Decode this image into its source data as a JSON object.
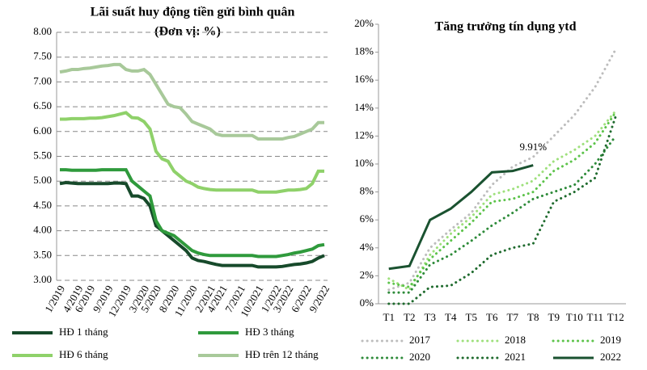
{
  "chart_data": [
    {
      "type": "line",
      "title": "Lãi suất huy động tiền gửi bình quân",
      "subtitle": "(Đơn vị: %)",
      "categories": [
        "1/2019",
        null,
        null,
        "4/2019",
        null,
        "6/2019",
        null,
        null,
        "9/2019",
        null,
        null,
        "12/2019",
        null,
        null,
        "3/2020",
        null,
        "5/2020",
        null,
        null,
        "8/2020",
        null,
        null,
        "11/2020",
        null,
        null,
        "2/2021",
        null,
        "4/2021",
        null,
        null,
        "7/2021",
        null,
        null,
        "10/2021",
        null,
        null,
        "1/2022",
        null,
        "3/2022",
        null,
        null,
        "6/2022",
        null,
        null,
        "9/2022"
      ],
      "ylim": [
        3,
        8
      ],
      "yticks": [
        {
          "value": 3,
          "label": "3.00"
        },
        {
          "value": 3.5,
          "label": "3.50"
        },
        {
          "value": 4,
          "label": "4.00"
        },
        {
          "value": 4.5,
          "label": "4.50"
        },
        {
          "value": 5,
          "label": "5.00"
        },
        {
          "value": 5.5,
          "label": "5.50"
        },
        {
          "value": 6,
          "label": "6.00"
        },
        {
          "value": 6.5,
          "label": "6.50"
        },
        {
          "value": 7,
          "label": "7.00"
        },
        {
          "value": 7.5,
          "label": "7.50"
        },
        {
          "value": 8,
          "label": "8.00"
        }
      ],
      "grid": true,
      "series": [
        {
          "name": "HĐ 1 tháng",
          "color": "#174a2b",
          "style": "solid",
          "values": [
            4.95,
            4.97,
            4.96,
            4.95,
            4.95,
            4.95,
            4.95,
            4.95,
            4.95,
            4.96,
            4.96,
            4.95,
            4.7,
            4.7,
            4.65,
            4.5,
            4.1,
            4.0,
            3.9,
            3.8,
            3.7,
            3.6,
            3.45,
            3.4,
            3.38,
            3.35,
            3.32,
            3.3,
            3.3,
            3.3,
            3.3,
            3.3,
            3.3,
            3.27,
            3.27,
            3.27,
            3.27,
            3.28,
            3.3,
            3.32,
            3.33,
            3.35,
            3.38,
            3.45,
            3.5
          ]
        },
        {
          "name": "HĐ 3 tháng",
          "color": "#2f9a3c",
          "style": "solid",
          "values": [
            5.23,
            5.23,
            5.22,
            5.22,
            5.22,
            5.22,
            5.22,
            5.23,
            5.23,
            5.23,
            5.23,
            5.23,
            5.0,
            4.9,
            4.8,
            4.7,
            4.2,
            4.0,
            3.95,
            3.9,
            3.8,
            3.7,
            3.6,
            3.55,
            3.52,
            3.5,
            3.5,
            3.5,
            3.5,
            3.5,
            3.5,
            3.5,
            3.5,
            3.48,
            3.48,
            3.48,
            3.48,
            3.5,
            3.52,
            3.55,
            3.57,
            3.6,
            3.63,
            3.7,
            3.72
          ]
        },
        {
          "name": "HĐ 6 tháng",
          "color": "#8fd16a",
          "style": "solid",
          "values": [
            6.25,
            6.25,
            6.26,
            6.26,
            6.26,
            6.27,
            6.27,
            6.28,
            6.3,
            6.32,
            6.35,
            6.38,
            6.28,
            6.27,
            6.2,
            6.05,
            5.6,
            5.45,
            5.4,
            5.2,
            5.1,
            5.0,
            4.95,
            4.88,
            4.85,
            4.83,
            4.82,
            4.82,
            4.82,
            4.82,
            4.82,
            4.82,
            4.82,
            4.78,
            4.78,
            4.78,
            4.78,
            4.8,
            4.82,
            4.82,
            4.83,
            4.85,
            4.95,
            5.2,
            5.2
          ]
        },
        {
          "name": "HĐ trên 12 tháng",
          "color": "#a8c99a",
          "style": "solid",
          "values": [
            7.2,
            7.22,
            7.25,
            7.25,
            7.27,
            7.28,
            7.3,
            7.32,
            7.33,
            7.35,
            7.35,
            7.25,
            7.22,
            7.22,
            7.25,
            7.15,
            6.95,
            6.75,
            6.55,
            6.5,
            6.48,
            6.35,
            6.2,
            6.15,
            6.1,
            6.05,
            5.95,
            5.92,
            5.92,
            5.92,
            5.92,
            5.92,
            5.92,
            5.85,
            5.85,
            5.85,
            5.85,
            5.85,
            5.88,
            5.9,
            5.95,
            6.0,
            6.05,
            6.18,
            6.18
          ]
        }
      ]
    },
    {
      "type": "line",
      "title": "Tăng trưởng tín dụng ytd",
      "categories": [
        "T1",
        "T2",
        "T3",
        "T4",
        "T5",
        "T6",
        "T7",
        "T8",
        "T9",
        "T10",
        "T11",
        "T12"
      ],
      "ylim": [
        0,
        20
      ],
      "yticks": [
        {
          "value": 0,
          "label": "0%"
        },
        {
          "value": 2,
          "label": "2%"
        },
        {
          "value": 4,
          "label": "4%"
        },
        {
          "value": 6,
          "label": "6%"
        },
        {
          "value": 8,
          "label": "8%"
        },
        {
          "value": 10,
          "label": "10%"
        },
        {
          "value": 12,
          "label": "12%"
        },
        {
          "value": 14,
          "label": "14%"
        },
        {
          "value": 16,
          "label": "16%"
        },
        {
          "value": 18,
          "label": "18%"
        },
        {
          "value": 20,
          "label": "20%"
        }
      ],
      "grid": false,
      "annotation": "9.91%",
      "series": [
        {
          "name": "2017",
          "color": "#bdbdbd",
          "style": "dotted",
          "values": [
            1.0,
            1.5,
            4.0,
            5.3,
            6.5,
            8.5,
            9.8,
            10.5,
            12.0,
            13.5,
            15.5,
            18.2
          ]
        },
        {
          "name": "2018",
          "color": "#9ee07c",
          "style": "dotted",
          "values": [
            1.8,
            1.0,
            3.5,
            5.0,
            6.2,
            7.8,
            8.2,
            8.8,
            10.2,
            11.0,
            12.0,
            13.8
          ]
        },
        {
          "name": "2019",
          "color": "#5cc34a",
          "style": "dotted",
          "values": [
            1.5,
            1.2,
            3.2,
            4.5,
            5.8,
            7.3,
            7.5,
            8.0,
            9.5,
            10.3,
            11.5,
            13.7
          ]
        },
        {
          "name": "2020",
          "color": "#2e8b3a",
          "style": "dotted",
          "values": [
            0.8,
            0.8,
            2.8,
            3.5,
            4.5,
            5.6,
            6.5,
            7.5,
            8.0,
            8.5,
            10.0,
            12.0
          ]
        },
        {
          "name": "2021",
          "color": "#1f6b2e",
          "style": "dotted",
          "values": [
            0,
            0,
            1.2,
            1.3,
            2.2,
            3.5,
            4.0,
            4.3,
            7.3,
            8.0,
            9.0,
            13.4
          ]
        },
        {
          "name": "2022",
          "color": "#1a5230",
          "style": "solid",
          "values": [
            2.5,
            2.7,
            6.0,
            6.8,
            8.0,
            9.4,
            9.5,
            9.91,
            null,
            null,
            null,
            null
          ]
        }
      ]
    }
  ]
}
